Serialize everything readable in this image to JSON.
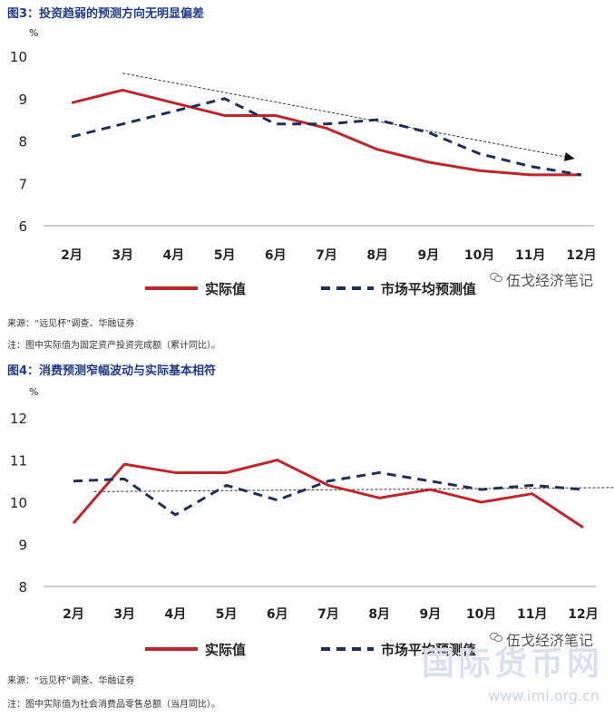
{
  "charts": [
    {
      "title": "图3：投资趋弱的预测方向无明显偏差",
      "source": "来源：“远见杯”调查、华融证券",
      "note": "注：图中实际值为固定资产投资完成额（累计同比）。",
      "watermark": "伍戈经济笔记"
    },
    {
      "title": "图4：消费预测窄幅波动与实际基本相符",
      "source": "来源：“远见杯”调查、华融证券",
      "note": "注：图中实际值为社会消费品零售总额（当月同比）。",
      "watermark": "伍戈经济笔记"
    }
  ],
  "site_logo": "国际货币网",
  "site_url": "www.imi.org.cn",
  "colors": {
    "actual": "#c0252a",
    "forecast": "#1f2f5c",
    "title": "#1f3a8a"
  },
  "chart_data": [
    {
      "type": "line",
      "title": "图3：投资趋弱的预测方向无明显偏差",
      "ylabel": "%",
      "xlabel": "",
      "categories": [
        "2月",
        "3月",
        "4月",
        "5月",
        "6月",
        "7月",
        "8月",
        "9月",
        "10月",
        "11月",
        "12月"
      ],
      "ylim": [
        6,
        10
      ],
      "yticks": [
        6,
        7,
        8,
        9,
        10
      ],
      "series": [
        {
          "name": "实际值",
          "style": "solid",
          "values": [
            8.9,
            9.2,
            8.9,
            8.6,
            8.6,
            8.3,
            7.8,
            7.5,
            7.3,
            7.2,
            7.2
          ]
        },
        {
          "name": "市场平均预测值",
          "style": "dashed",
          "values": [
            8.1,
            8.4,
            8.7,
            9.0,
            8.4,
            8.4,
            8.5,
            8.2,
            7.7,
            7.4,
            7.2
          ]
        }
      ],
      "trend_arrow": {
        "from": [
          1,
          9.6
        ],
        "to": [
          9.8,
          7.6
        ]
      },
      "legend": "bottom"
    },
    {
      "type": "line",
      "title": "图4：消费预测窄幅波动与实际基本相符",
      "ylabel": "%",
      "xlabel": "",
      "categories": [
        "2月",
        "3月",
        "4月",
        "5月",
        "6月",
        "7月",
        "8月",
        "9月",
        "10月",
        "11月",
        "12月"
      ],
      "ylim": [
        8,
        12
      ],
      "yticks": [
        8,
        9,
        10,
        11,
        12
      ],
      "series": [
        {
          "name": "实际值",
          "style": "solid",
          "values": [
            9.5,
            10.9,
            10.7,
            10.7,
            11.0,
            10.4,
            10.1,
            10.3,
            10.0,
            10.2,
            9.4
          ]
        },
        {
          "name": "市场平均预测值",
          "style": "dashed",
          "values": [
            10.5,
            10.55,
            9.7,
            10.4,
            10.05,
            10.5,
            10.7,
            10.5,
            10.3,
            10.4,
            10.3
          ]
        }
      ],
      "trend_arrow": {
        "from": [
          0.4,
          10.25
        ],
        "to": [
          10.9,
          10.35
        ]
      },
      "legend": "bottom"
    }
  ]
}
